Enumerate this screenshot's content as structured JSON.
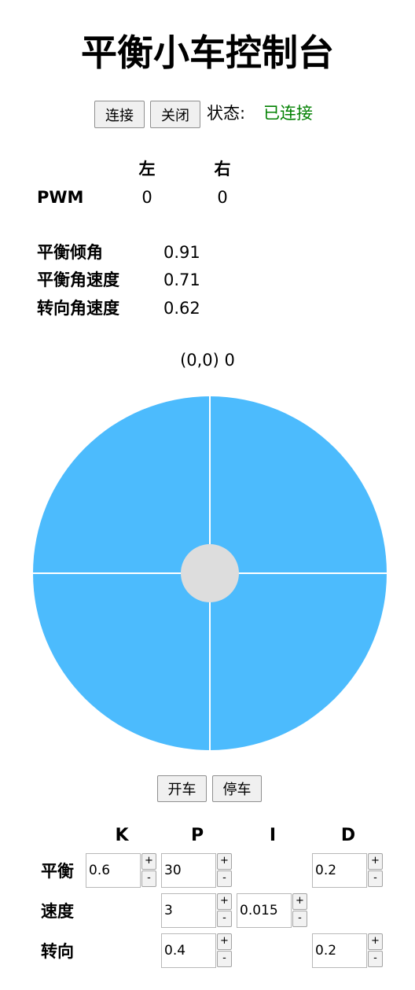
{
  "page": {
    "title": "平衡小车控制台"
  },
  "connection": {
    "connect_label": "连接",
    "close_label": "关闭",
    "status_label": "状态:",
    "status_value": "已连接",
    "status_color": "#008000"
  },
  "pwm": {
    "left_header": "左",
    "right_header": "右",
    "row_label": "PWM",
    "left_value": "0",
    "right_value": "0"
  },
  "sensors": [
    {
      "label": "平衡倾角",
      "value": "0.91"
    },
    {
      "label": "平衡角速度",
      "value": "0.71"
    },
    {
      "label": "转向角速度",
      "value": "0.62"
    }
  ],
  "joystick": {
    "readout": "(0,0) 0",
    "pad_color": "#4cbbfd",
    "knob_color": "#dddddd"
  },
  "drive": {
    "start_label": "开车",
    "stop_label": "停车"
  },
  "pid": {
    "headers": {
      "k": "K",
      "p": "P",
      "i": "I",
      "d": "D"
    },
    "stepper": {
      "plus": "+",
      "minus": "-"
    },
    "rows": {
      "balance": {
        "label": "平衡",
        "k": "0.6",
        "p": "30",
        "d": "0.2"
      },
      "speed": {
        "label": "速度",
        "p": "3",
        "i": "0.015"
      },
      "turn": {
        "label": "转向",
        "p": "0.4",
        "d": "0.2"
      }
    }
  }
}
